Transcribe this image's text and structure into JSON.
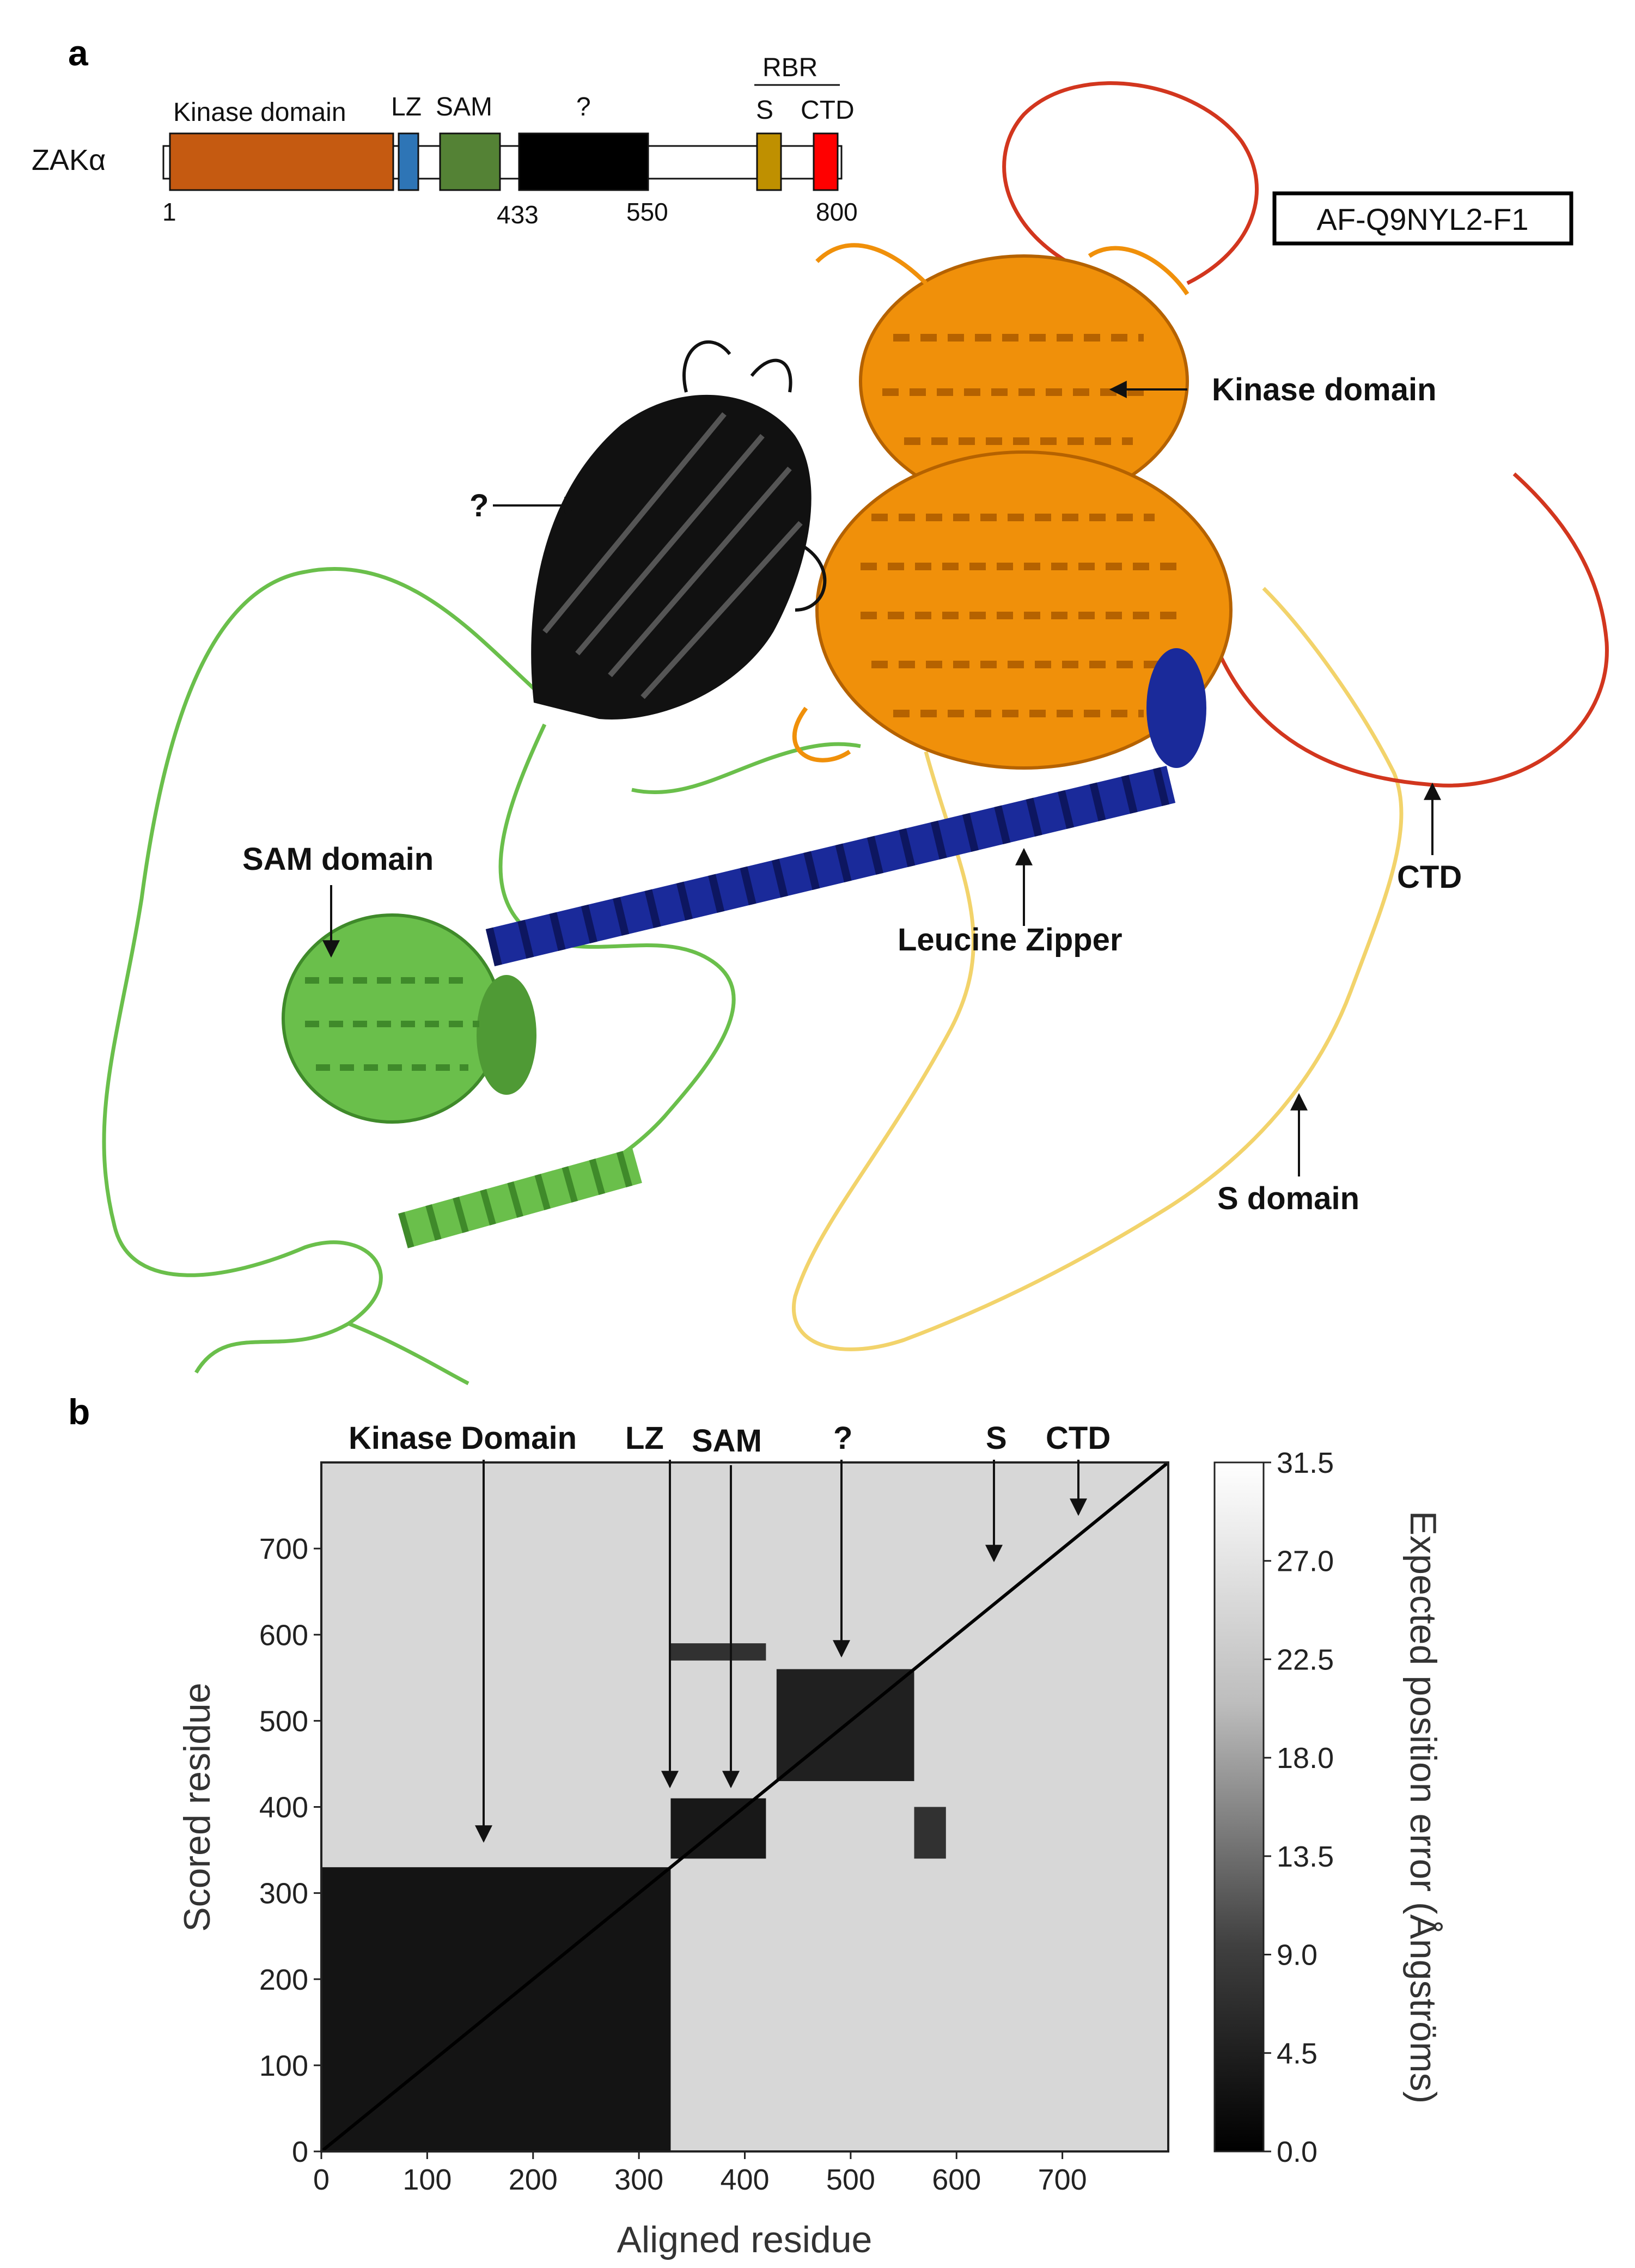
{
  "panel_a": {
    "letter": "a",
    "protein_name": "ZAKα",
    "structure_id": "AF-Q9NYL2-F1",
    "domains": [
      {
        "label": "Kinase domain",
        "color": "#c55a11"
      },
      {
        "label": "LZ",
        "color": "#2e75b6"
      },
      {
        "label": "SAM",
        "color": "#548235"
      },
      {
        "label": "?",
        "color": "#000000"
      },
      {
        "label": "S",
        "color": "#bf9000"
      },
      {
        "label": "CTD",
        "color": "#ff0000"
      }
    ],
    "bracket_label": "RBR",
    "positions": [
      "1",
      "433",
      "550",
      "800"
    ],
    "annotations": {
      "kinase": "Kinase domain",
      "unknown": "?",
      "sam": "SAM domain",
      "lz": "Leucine Zipper",
      "ctd": "CTD",
      "s": "S domain"
    },
    "structure_colors": {
      "kinase": "#f0900a",
      "kinase_dark": "#b56200",
      "unknown": "#111111",
      "sam": "#6abf4b",
      "sam_dark": "#3f8a2a",
      "lz": "#1a2a9a",
      "s": "#f2d36b",
      "ctd": "#d2361e"
    }
  },
  "panel_b": {
    "letter": "b",
    "top_labels": [
      "Kinase Domain",
      "LZ",
      "SAM",
      "?",
      "S",
      "CTD"
    ],
    "colorbar": {
      "ticks": [
        "31.5",
        "27.0",
        "22.5",
        "18.0",
        "13.5",
        "9.0",
        "4.5",
        "0.0"
      ],
      "label": "Expected position error (Ångströms)"
    }
  },
  "chart_data": {
    "type": "heatmap",
    "xlabel": "Aligned residue",
    "ylabel": "Scored residue",
    "xlim": [
      0,
      800
    ],
    "ylim": [
      0,
      800
    ],
    "xticks": [
      "0",
      "100",
      "200",
      "300",
      "400",
      "500",
      "600",
      "700"
    ],
    "yticks": [
      "0",
      "100",
      "200",
      "300",
      "400",
      "500",
      "600",
      "700"
    ],
    "value_range": [
      0,
      31.5
    ],
    "colormap": "greys_reversed",
    "blocks": [
      {
        "x": [
          0,
          330
        ],
        "y": [
          0,
          330
        ],
        "value": 2.5
      },
      {
        "x": [
          330,
          420
        ],
        "y": [
          340,
          410
        ],
        "value": 3
      },
      {
        "x": [
          330,
          420
        ],
        "y": [
          570,
          590
        ],
        "value": 6
      },
      {
        "x": [
          430,
          560
        ],
        "y": [
          430,
          560
        ],
        "value": 4
      },
      {
        "x": [
          560,
          590
        ],
        "y": [
          340,
          400
        ],
        "value": 6
      }
    ],
    "background_value": 26.5
  }
}
